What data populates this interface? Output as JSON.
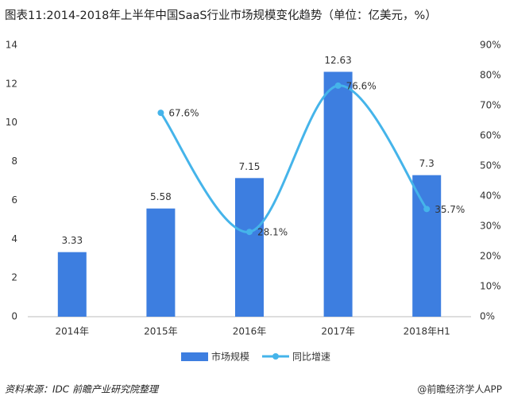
{
  "chart_data": {
    "type": "bar",
    "title": "图表11:2014-2018年上半年中国SaaS行业市场规模变化趋势（单位：亿美元，%）",
    "categories": [
      "2014年",
      "2015年",
      "2016年",
      "2017年",
      "2018年H1"
    ],
    "series": [
      {
        "name": "市场规模",
        "type": "bar",
        "color": "#3d7ee0",
        "values": [
          3.33,
          5.58,
          7.15,
          12.63,
          7.3
        ]
      },
      {
        "name": "同比增速",
        "type": "line",
        "axis": "y2",
        "color": "#45b4ea",
        "values": [
          null,
          67.6,
          28.1,
          76.6,
          35.7
        ],
        "value_labels": [
          null,
          "67.6%",
          "28.1%",
          "76.6%",
          "35.7%"
        ]
      }
    ],
    "ylim": [
      0,
      14
    ],
    "yticks": [
      0,
      2,
      4,
      6,
      8,
      10,
      12,
      14
    ],
    "y2lim": [
      0,
      90
    ],
    "y2ticks": [
      {
        "value": 0,
        "label": "0%"
      },
      {
        "value": 10,
        "label": "10%"
      },
      {
        "value": 20,
        "label": "20%"
      },
      {
        "value": 30,
        "label": "30%"
      },
      {
        "value": 40,
        "label": "40%"
      },
      {
        "value": 50,
        "label": "50%"
      },
      {
        "value": 60,
        "label": "60%"
      },
      {
        "value": 70,
        "label": "70%"
      },
      {
        "value": 80,
        "label": "80%"
      },
      {
        "value": 90,
        "label": "90%"
      }
    ],
    "legend": "bottom",
    "source": "资料来源：IDC 前瞻产业研究院整理",
    "credit": "@前瞻经济学人APP"
  }
}
